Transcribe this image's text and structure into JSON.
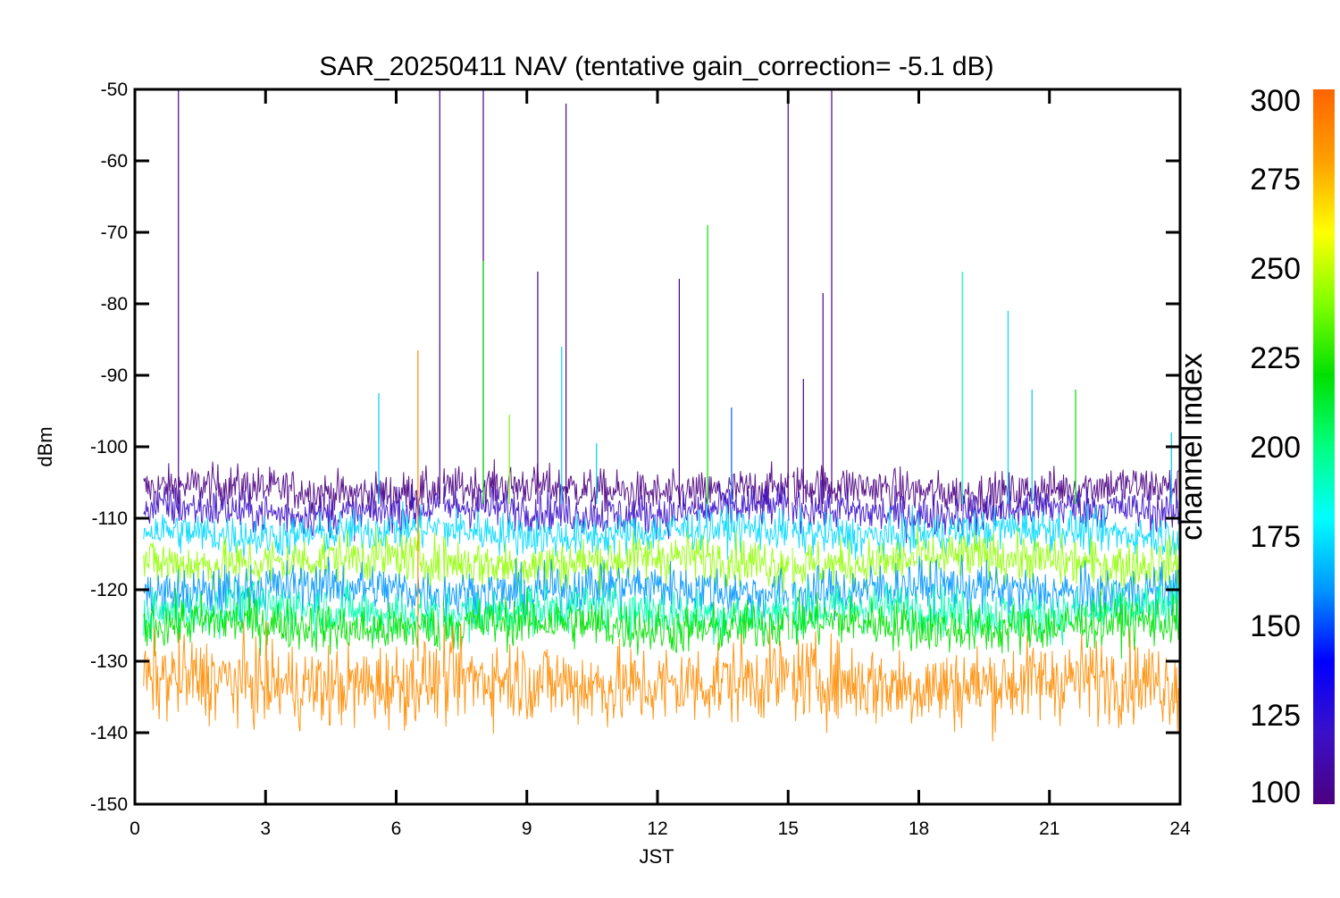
{
  "chart_data": {
    "type": "line",
    "title": "SAR_20250411 NAV (tentative gain_correction= -5.1 dB)",
    "xlabel": "JST",
    "ylabel": "dBm",
    "xlim": [
      0,
      24
    ],
    "ylim": [
      -150,
      -50
    ],
    "x_ticks": [
      "0",
      "3",
      "6",
      "9",
      "12",
      "15",
      "18",
      "21",
      "24"
    ],
    "y_ticks": [
      "-50",
      "-60",
      "-70",
      "-80",
      "-90",
      "-100",
      "-110",
      "-120",
      "-130",
      "-140",
      "-150"
    ],
    "grid": false,
    "data_gaps_jst": [
      7.05,
      15.05
    ],
    "colorbar": {
      "label": "channel index",
      "range": [
        100,
        300
      ],
      "ticks": [
        "300",
        "275",
        "250",
        "225",
        "200",
        "175",
        "150",
        "125",
        "100"
      ],
      "colors": [
        "#4b0080",
        "#3a10c8",
        "#0000ff",
        "#0096ff",
        "#00ffff",
        "#00ff80",
        "#00e000",
        "#80ff00",
        "#ffff00",
        "#ffa000",
        "#ff6400"
      ]
    },
    "series": [
      {
        "channel_group": "100-110",
        "color": "#4b0082",
        "level_dbm": -106,
        "spread_db": 2.5
      },
      {
        "channel_group": "110-125",
        "color": "#3a10c8",
        "level_dbm": -109,
        "spread_db": 2.5
      },
      {
        "channel_group": "160-180",
        "color": "#00d8ff",
        "level_dbm": -112,
        "spread_db": 2.5
      },
      {
        "channel_group": "250-265",
        "color": "#90ff00",
        "level_dbm": -116,
        "spread_db": 3
      },
      {
        "channel_group": "150-175",
        "color": "#0096ff",
        "level_dbm": -120,
        "spread_db": 3
      },
      {
        "channel_group": "190-210",
        "color": "#00ffb0",
        "level_dbm": -123,
        "spread_db": 3
      },
      {
        "channel_group": "225-245",
        "color": "#00e000",
        "level_dbm": -125,
        "spread_db": 3
      },
      {
        "channel_group": "285-300",
        "color": "#ff8c00",
        "level_dbm": -133,
        "spread_db": 5
      }
    ],
    "spikes": [
      {
        "jst": 1.0,
        "peak_dbm": -50,
        "color": "#4b0082"
      },
      {
        "jst": 5.6,
        "peak_dbm": -92.5,
        "color": "#00c8ff"
      },
      {
        "jst": 6.5,
        "peak_dbm": -86.5,
        "color": "#ff8c00"
      },
      {
        "jst": 7.0,
        "peak_dbm": -50,
        "color": "#4b0082"
      },
      {
        "jst": 8.0,
        "peak_dbm": -50,
        "color": "#4b0082"
      },
      {
        "jst": 8.0,
        "peak_dbm": -74,
        "color": "#00e000"
      },
      {
        "jst": 8.6,
        "peak_dbm": -95.5,
        "color": "#80ff00"
      },
      {
        "jst": 9.25,
        "peak_dbm": -75.5,
        "color": "#4b0082"
      },
      {
        "jst": 9.8,
        "peak_dbm": -86,
        "color": "#00d8ff"
      },
      {
        "jst": 9.9,
        "peak_dbm": -52,
        "color": "#4b0082"
      },
      {
        "jst": 10.6,
        "peak_dbm": -99.5,
        "color": "#00c8ff"
      },
      {
        "jst": 12.5,
        "peak_dbm": -76.5,
        "color": "#4b0082"
      },
      {
        "jst": 13.15,
        "peak_dbm": -69,
        "color": "#00e000"
      },
      {
        "jst": 13.7,
        "peak_dbm": -94.5,
        "color": "#0060ff"
      },
      {
        "jst": 15.0,
        "peak_dbm": -50,
        "color": "#4b0082"
      },
      {
        "jst": 15.35,
        "peak_dbm": -90.5,
        "color": "#4b0082"
      },
      {
        "jst": 15.8,
        "peak_dbm": -78.5,
        "color": "#4b0082"
      },
      {
        "jst": 16.0,
        "peak_dbm": -50,
        "color": "#4b0082"
      },
      {
        "jst": 19.0,
        "peak_dbm": -75.5,
        "color": "#00ffb0"
      },
      {
        "jst": 20.05,
        "peak_dbm": -81,
        "color": "#00d8ff"
      },
      {
        "jst": 20.6,
        "peak_dbm": -92,
        "color": "#00c8ff"
      },
      {
        "jst": 21.6,
        "peak_dbm": -92,
        "color": "#00e000"
      },
      {
        "jst": 23.8,
        "peak_dbm": -98,
        "color": "#00c8ff"
      }
    ]
  }
}
